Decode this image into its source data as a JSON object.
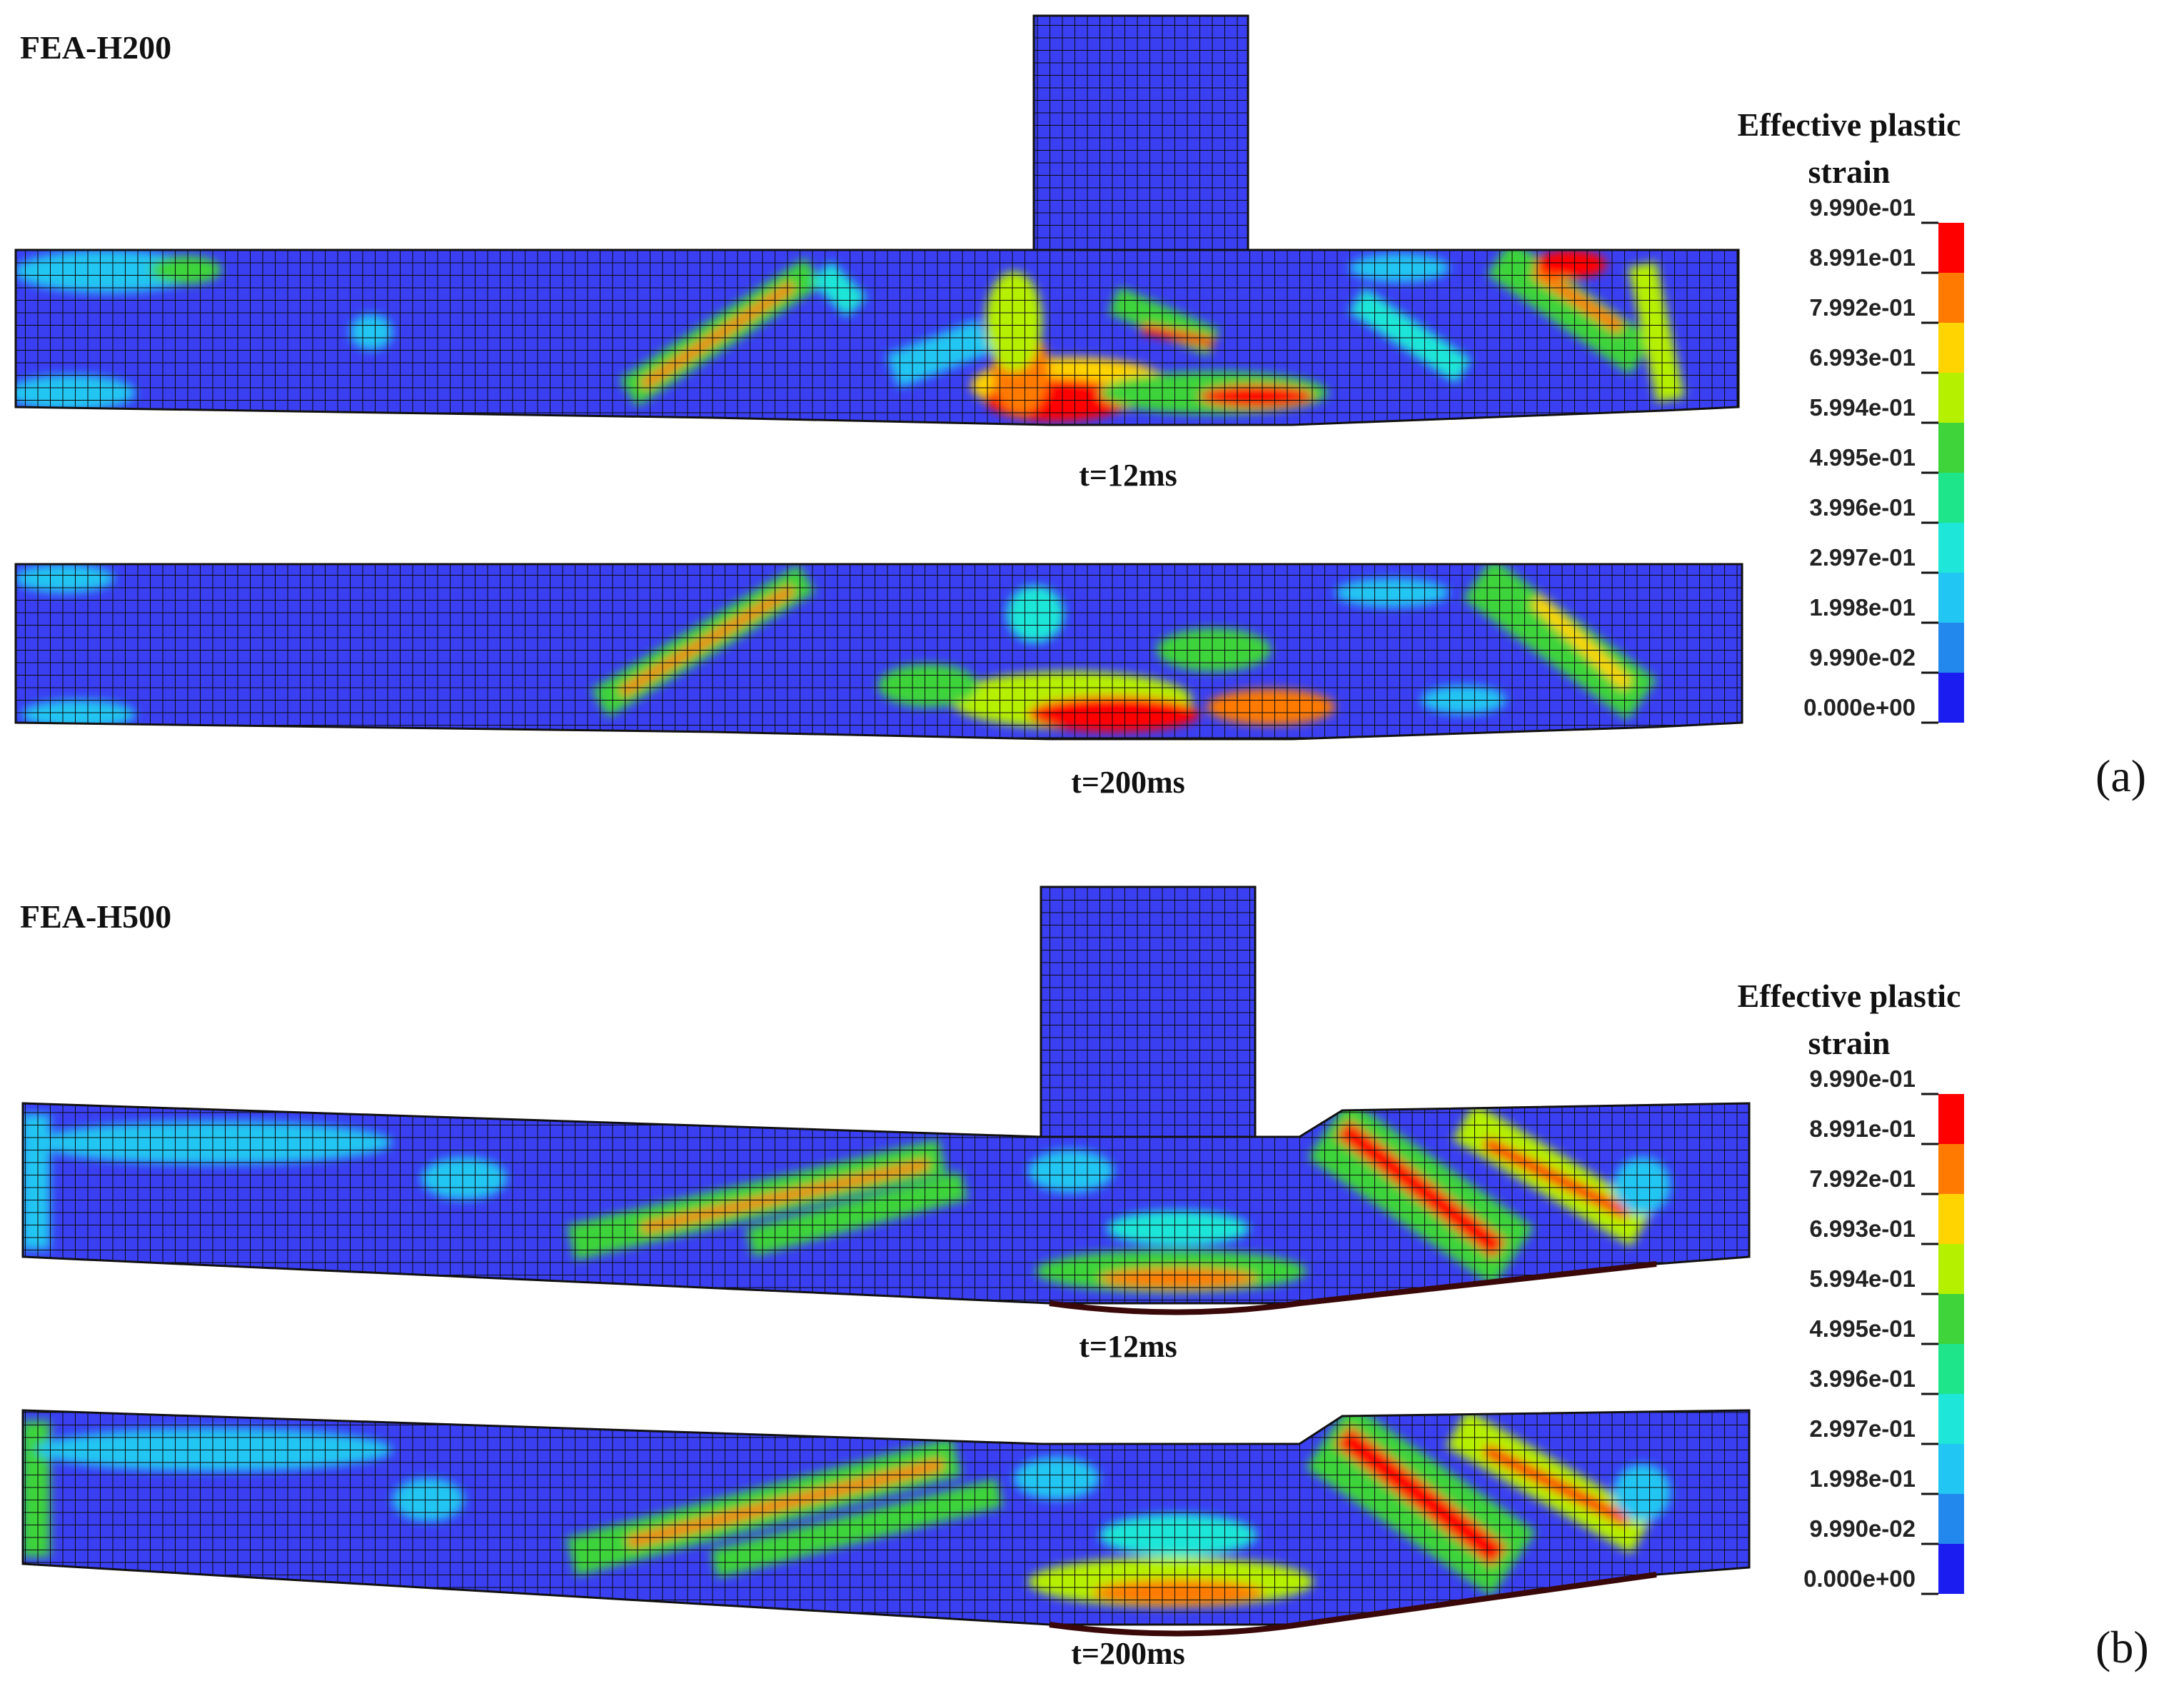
{
  "colorbar": {
    "title_line1": "Effective plastic",
    "title_line2": "strain",
    "ticks": [
      "9.990e-01",
      "8.991e-01",
      "7.992e-01",
      "6.993e-01",
      "5.994e-01",
      "4.995e-01",
      "3.996e-01",
      "2.997e-01",
      "1.998e-01",
      "9.990e-02",
      "0.000e+00"
    ],
    "colors": [
      "#ff0000",
      "#ff7a00",
      "#ffd400",
      "#b5f000",
      "#3ed43a",
      "#1ee48a",
      "#1ee6d8",
      "#21c6f2",
      "#2388ee",
      "#1a1cf0"
    ]
  },
  "panels": [
    {
      "case_label": "FEA-H200",
      "panel_label": "(a)",
      "snapshots": [
        {
          "time": "t=12ms"
        },
        {
          "time": "t=200ms"
        }
      ]
    },
    {
      "case_label": "FEA-H500",
      "panel_label": "(b)",
      "snapshots": [
        {
          "time": "t=12ms"
        },
        {
          "time": "t=200ms"
        }
      ]
    }
  ],
  "palette": {
    "background": "#3a3ff2",
    "mesh": "#0b0b0b"
  }
}
